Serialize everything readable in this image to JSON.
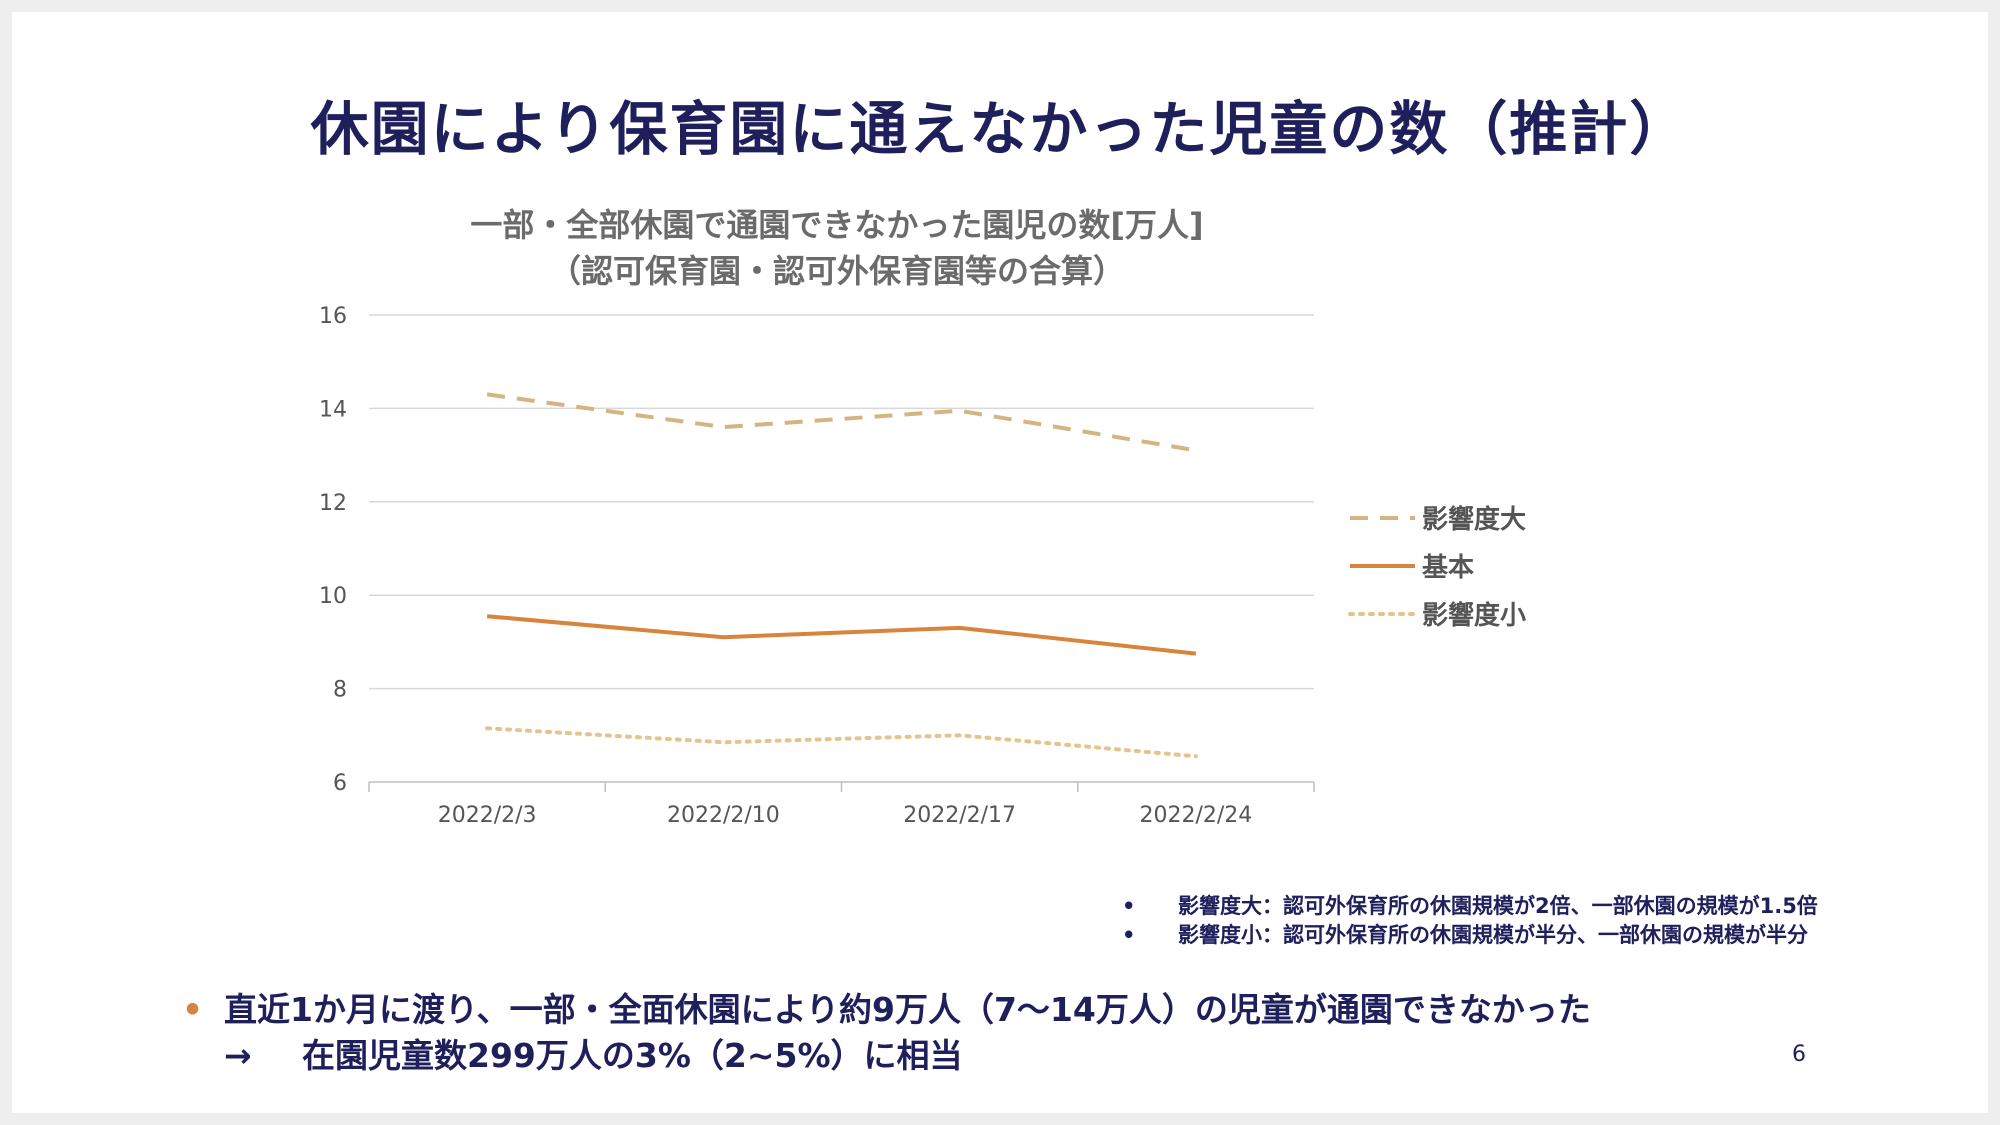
{
  "slide": {
    "title": "休園により保育園に通えなかった児童の数（推計）",
    "page_number": "6"
  },
  "chart_data": {
    "type": "line",
    "title": "一部・全部休園で通園できなかった園児の数[万人]",
    "subtitle": "（認可保育園・認可外保育園等の合算）",
    "xlabel": "",
    "ylabel": "",
    "categories": [
      "2022/2/3",
      "2022/2/10",
      "2022/2/17",
      "2022/2/24"
    ],
    "ylim": [
      6,
      16
    ],
    "yticks": [
      6,
      8,
      10,
      12,
      14,
      16
    ],
    "grid": true,
    "legend_position": "right",
    "series": [
      {
        "name": "影響度大",
        "values": [
          14.3,
          13.6,
          13.95,
          13.1
        ],
        "color": "#d4b483",
        "style": "dashed"
      },
      {
        "name": "基本",
        "values": [
          9.55,
          9.1,
          9.3,
          8.75
        ],
        "color": "#d9843c",
        "style": "solid"
      },
      {
        "name": "影響度小",
        "values": [
          7.15,
          6.85,
          7.0,
          6.55
        ],
        "color": "#e3c48e",
        "style": "dotted"
      }
    ]
  },
  "notes": [
    {
      "bullet": "•",
      "text": "影響度大：認可外保育所の休園規模が2倍、一部休園の規模が1.5倍"
    },
    {
      "bullet": "•",
      "text": "影響度小：認可外保育所の休園規模が半分、一部休園の規模が半分"
    }
  ],
  "summary": {
    "bullet": "•",
    "line1": "直近1か月に渡り、一部・全面休園により約9万人（7～14万人）の児童が通園できなかった",
    "arrow": "→",
    "line2": "在園児童数299万人の3%（2~5%）に相当"
  }
}
